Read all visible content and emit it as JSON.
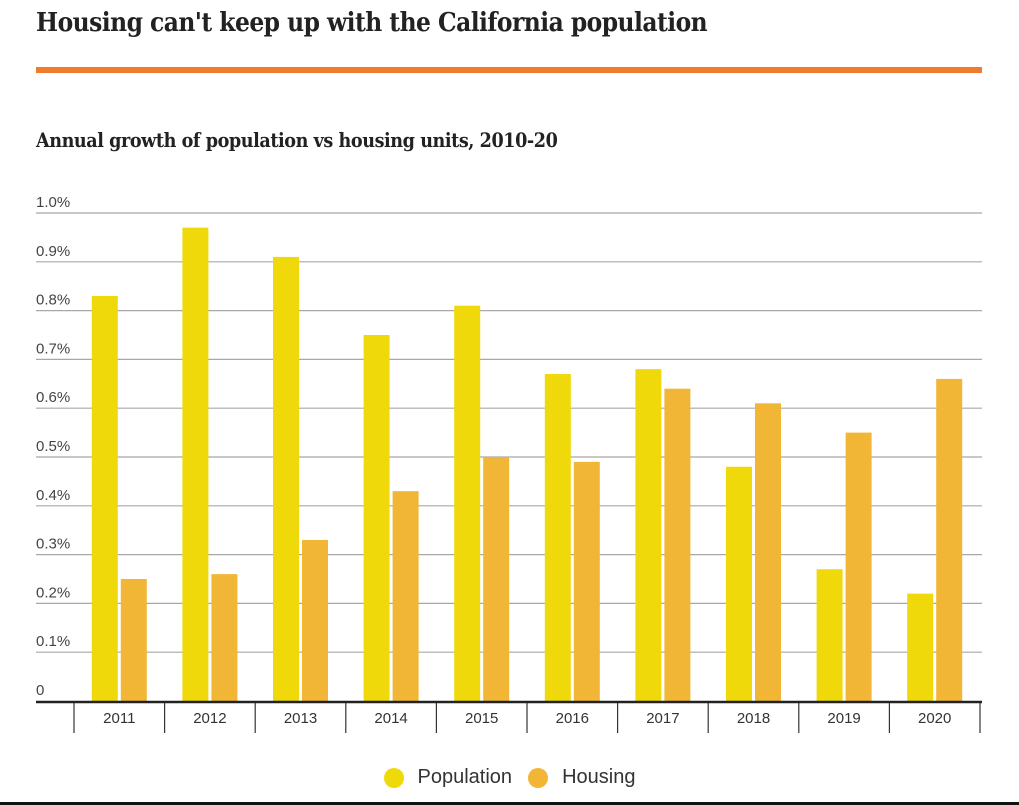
{
  "header": {
    "title": "Housing can't keep up with the California population",
    "accent_color": "#ef7b2d"
  },
  "chart_data": {
    "type": "bar",
    "title": "Annual growth of population vs housing units, 2010-20",
    "xlabel": "",
    "ylabel": "",
    "categories": [
      "2011",
      "2012",
      "2013",
      "2014",
      "2015",
      "2016",
      "2017",
      "2018",
      "2019",
      "2020"
    ],
    "series": [
      {
        "name": "Population",
        "color": "#f0d90a",
        "values": [
          0.83,
          0.97,
          0.91,
          0.75,
          0.81,
          0.67,
          0.68,
          0.48,
          0.27,
          0.22
        ]
      },
      {
        "name": "Housing",
        "color": "#f2b636",
        "values": [
          0.25,
          0.26,
          0.33,
          0.43,
          0.5,
          0.49,
          0.64,
          0.61,
          0.55,
          0.66
        ]
      }
    ],
    "ylim": [
      0,
      1.0
    ],
    "yticks": [
      {
        "value": 0,
        "label": "0"
      },
      {
        "value": 0.1,
        "label": "0.1%"
      },
      {
        "value": 0.2,
        "label": "0.2%"
      },
      {
        "value": 0.3,
        "label": "0.3%"
      },
      {
        "value": 0.4,
        "label": "0.4%"
      },
      {
        "value": 0.5,
        "label": "0.5%"
      },
      {
        "value": 0.6,
        "label": "0.6%"
      },
      {
        "value": 0.7,
        "label": "0.7%"
      },
      {
        "value": 0.8,
        "label": "0.8%"
      },
      {
        "value": 0.9,
        "label": "0.9%"
      },
      {
        "value": 1.0,
        "label": "1.0%"
      }
    ],
    "grid": true,
    "legend_position": "bottom-center"
  },
  "legend": {
    "items": [
      {
        "label": "Population",
        "color": "#f0d90a"
      },
      {
        "label": "Housing",
        "color": "#f2b636"
      }
    ]
  }
}
